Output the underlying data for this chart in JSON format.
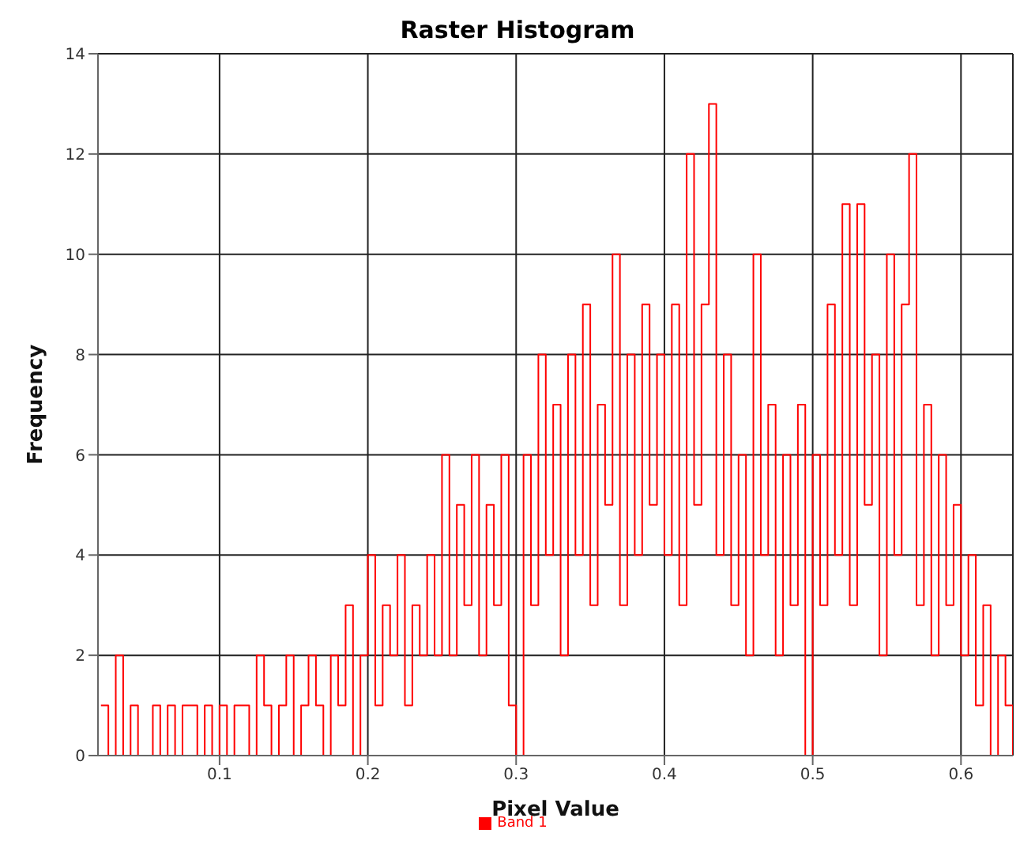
{
  "chart_data": {
    "type": "step",
    "title": "Raster Histogram",
    "xlabel": "Pixel Value",
    "ylabel": "Frequency",
    "x": [
      0.02,
      0.025,
      0.03,
      0.035,
      0.04,
      0.045,
      0.05,
      0.055,
      0.06,
      0.065,
      0.07,
      0.075,
      0.08,
      0.085,
      0.09,
      0.095,
      0.1,
      0.105,
      0.11,
      0.115,
      0.12,
      0.125,
      0.13,
      0.135,
      0.14,
      0.145,
      0.15,
      0.155,
      0.16,
      0.165,
      0.17,
      0.175,
      0.18,
      0.185,
      0.19,
      0.195,
      0.2,
      0.205,
      0.21,
      0.215,
      0.22,
      0.225,
      0.23,
      0.235,
      0.24,
      0.245,
      0.25,
      0.255,
      0.26,
      0.265,
      0.27,
      0.275,
      0.28,
      0.285,
      0.29,
      0.295,
      0.3,
      0.305,
      0.31,
      0.315,
      0.32,
      0.325,
      0.33,
      0.335,
      0.34,
      0.345,
      0.35,
      0.355,
      0.36,
      0.365,
      0.37,
      0.375,
      0.38,
      0.385,
      0.39,
      0.395,
      0.4,
      0.405,
      0.41,
      0.415,
      0.42,
      0.425,
      0.43,
      0.435,
      0.44,
      0.445,
      0.45,
      0.455,
      0.46,
      0.465,
      0.47,
      0.475,
      0.48,
      0.485,
      0.49,
      0.495,
      0.5,
      0.505,
      0.51,
      0.515,
      0.52,
      0.525,
      0.53,
      0.535,
      0.54,
      0.545,
      0.55,
      0.555,
      0.56,
      0.565,
      0.57,
      0.575,
      0.58,
      0.585,
      0.59,
      0.595,
      0.6,
      0.605,
      0.61,
      0.615,
      0.62,
      0.625,
      0.63,
      0.635
    ],
    "series": [
      {
        "name": "Band 1",
        "color": "#ff0000",
        "values": [
          1,
          0,
          2,
          0,
          1,
          0,
          0,
          1,
          0,
          1,
          0,
          1,
          1,
          0,
          1,
          0,
          1,
          0,
          1,
          1,
          0,
          2,
          1,
          0,
          1,
          2,
          0,
          1,
          2,
          1,
          0,
          2,
          1,
          3,
          0,
          2,
          4,
          1,
          3,
          2,
          4,
          1,
          3,
          2,
          4,
          2,
          6,
          2,
          5,
          3,
          6,
          2,
          5,
          3,
          6,
          1,
          0,
          6,
          3,
          8,
          4,
          7,
          2,
          8,
          4,
          9,
          3,
          7,
          5,
          10,
          3,
          8,
          4,
          9,
          5,
          8,
          4,
          9,
          3,
          12,
          5,
          9,
          13,
          4,
          8,
          3,
          6,
          2,
          10,
          4,
          7,
          2,
          6,
          3,
          7,
          0,
          6,
          3,
          9,
          4,
          11,
          3,
          11,
          5,
          8,
          2,
          10,
          4,
          9,
          12,
          3,
          7,
          2,
          6,
          3,
          5,
          2,
          4,
          1,
          3,
          0,
          2,
          1,
          0
        ]
      }
    ],
    "xlim": [
      0.018,
      0.635
    ],
    "xticks": [
      0.1,
      0.2,
      0.3,
      0.4,
      0.5,
      0.6
    ],
    "ylim": [
      0,
      14
    ],
    "yticks": [
      0,
      2,
      4,
      6,
      8,
      10,
      12,
      14
    ],
    "grid": true,
    "legend": "bottom",
    "marker": "none"
  }
}
